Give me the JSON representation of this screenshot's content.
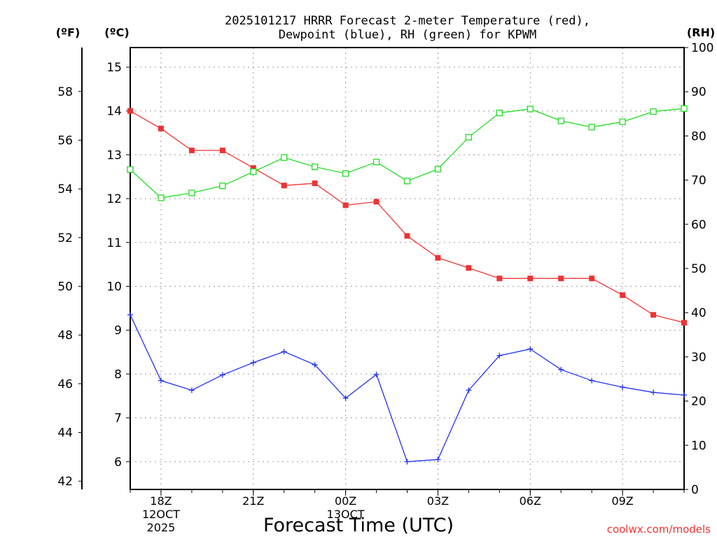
{
  "chart_data": {
    "type": "line",
    "title_line1": "2025101217 HRRR Forecast 2-meter Temperature (red),",
    "title_line2": "Dewpoint (blue), RH (green) for KPWM",
    "xlabel": "Forecast Time (UTC)",
    "watermark": "coolwx.com/models",
    "axis_units": {
      "fahrenheit": "(ºF)",
      "celsius": "(ºC)",
      "rh": "(RH)"
    },
    "x_hours": [
      17,
      18,
      19,
      20,
      21,
      22,
      23,
      24,
      25,
      26,
      27,
      28,
      29,
      30,
      31,
      32,
      33,
      34,
      35
    ],
    "x_ticks": [
      {
        "hour": 18,
        "label": "18Z",
        "sub1": "12OCT",
        "sub2": "2025"
      },
      {
        "hour": 21,
        "label": "21Z",
        "sub1": "",
        "sub2": ""
      },
      {
        "hour": 24,
        "label": "00Z",
        "sub1": "13OCT",
        "sub2": ""
      },
      {
        "hour": 27,
        "label": "03Z",
        "sub1": "",
        "sub2": ""
      },
      {
        "hour": 30,
        "label": "06Z",
        "sub1": "",
        "sub2": ""
      },
      {
        "hour": 33,
        "label": "09Z",
        "sub1": "",
        "sub2": ""
      }
    ],
    "c_range": [
      5.5,
      15.6
    ],
    "c_ticks": [
      6,
      7,
      8,
      9,
      10,
      11,
      12,
      13,
      14,
      15
    ],
    "f_ticks": [
      42,
      44,
      46,
      48,
      50,
      52,
      54,
      56,
      58
    ],
    "rh_range": [
      0,
      100
    ],
    "rh_ticks": [
      0,
      10,
      20,
      30,
      40,
      50,
      60,
      70,
      80,
      90,
      100
    ],
    "series": [
      {
        "name": "Temperature",
        "unit": "C",
        "color": "#ee3333",
        "values": [
          14.0,
          13.6,
          13.1,
          13.1,
          12.7,
          12.3,
          12.35,
          11.85,
          11.93,
          11.15,
          10.65,
          10.42,
          10.18,
          10.18,
          10.18,
          10.18,
          9.8,
          9.35,
          9.17
        ]
      },
      {
        "name": "Dewpoint",
        "unit": "C",
        "color": "#2233ee",
        "values": [
          9.35,
          7.85,
          7.63,
          7.98,
          8.26,
          8.51,
          8.21,
          7.45,
          7.99,
          6.0,
          6.05,
          7.63,
          8.42,
          8.57,
          8.1,
          7.85,
          7.7,
          7.58,
          7.52
        ]
      },
      {
        "name": "RH",
        "unit": "%",
        "color": "#22dd22",
        "values": [
          72.4,
          66.0,
          67.1,
          68.7,
          71.9,
          75.1,
          73.0,
          71.5,
          74.1,
          69.8,
          72.5,
          79.7,
          85.2,
          86.1,
          83.4,
          82.0,
          83.2,
          85.5,
          86.2
        ]
      }
    ]
  }
}
